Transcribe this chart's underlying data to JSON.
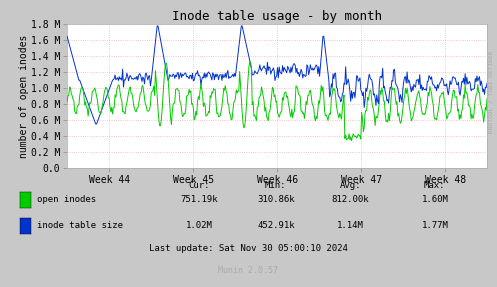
{
  "title": "Inode table usage - by month",
  "ylabel": "number of open inodes",
  "xlabel_ticks": [
    "Week 44",
    "Week 45",
    "Week 46",
    "Week 47",
    "Week 48"
  ],
  "ylim": [
    0.0,
    1800000
  ],
  "yticks": [
    0,
    200000,
    400000,
    600000,
    800000,
    1000000,
    1200000,
    1400000,
    1600000,
    1800000
  ],
  "ytick_labels": [
    "0.0",
    "0.2 M",
    "0.4 M",
    "0.6 M",
    "0.8 M",
    "1.0 M",
    "1.2 M",
    "1.4 M",
    "1.6 M",
    "1.8 M"
  ],
  "fig_bg_color": "#c8c8c8",
  "plot_bg_color": "#ffffff",
  "grid_color": "#ff9999",
  "line_green_color": "#00cc00",
  "line_blue_color": "#0033cc",
  "title_fontsize": 9,
  "axis_label_fontsize": 7,
  "tick_fontsize": 7,
  "legend_labels": [
    "open inodes",
    "inode table size"
  ],
  "footer_text": "Last update: Sat Nov 30 05:00:10 2024",
  "munin_text": "Munin 2.0.57",
  "watermark": "RRDTOOL / TOBI OETIKER",
  "cur_open": "751.19k",
  "cur_table": "1.02M",
  "min_open": "310.86k",
  "min_table": "452.91k",
  "avg_open": "812.00k",
  "avg_table": "1.14M",
  "max_open": "1.60M",
  "max_table": "1.77M",
  "xlim": [
    0,
    5
  ],
  "week_positions": [
    0.5,
    1.5,
    2.5,
    3.5,
    4.5
  ]
}
